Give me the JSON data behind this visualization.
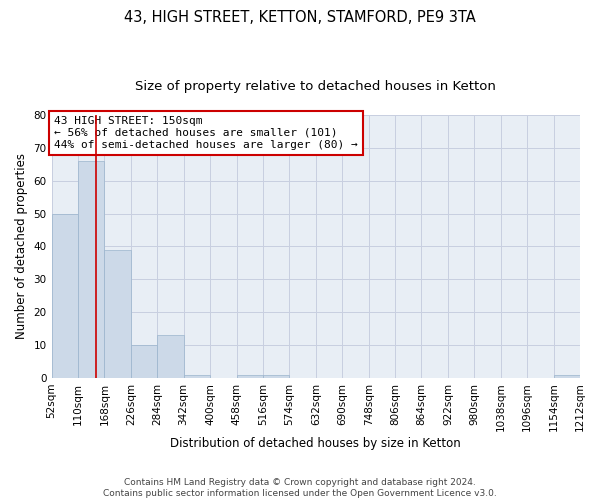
{
  "title": "43, HIGH STREET, KETTON, STAMFORD, PE9 3TA",
  "subtitle": "Size of property relative to detached houses in Ketton",
  "xlabel": "Distribution of detached houses by size in Ketton",
  "ylabel": "Number of detached properties",
  "bin_edges": [
    52,
    110,
    168,
    226,
    284,
    342,
    400,
    458,
    516,
    574,
    632,
    690,
    748,
    806,
    864,
    922,
    980,
    1038,
    1096,
    1154,
    1212
  ],
  "bar_heights": [
    50,
    66,
    39,
    10,
    13,
    1,
    0,
    1,
    1,
    0,
    0,
    0,
    0,
    0,
    0,
    0,
    0,
    0,
    0,
    1
  ],
  "bar_color": "#ccd9e8",
  "bar_edgecolor": "#9ab4cc",
  "grid_color": "#c8cfe0",
  "background_color": "#e8eef5",
  "property_line_x": 150,
  "property_line_color": "#cc0000",
  "annotation_line1": "43 HIGH STREET: 150sqm",
  "annotation_line2": "← 56% of detached houses are smaller (101)",
  "annotation_line3": "44% of semi-detached houses are larger (80) →",
  "annotation_box_color": "#cc0000",
  "ylim": [
    0,
    80
  ],
  "yticks": [
    0,
    10,
    20,
    30,
    40,
    50,
    60,
    70,
    80
  ],
  "footer_line1": "Contains HM Land Registry data © Crown copyright and database right 2024.",
  "footer_line2": "Contains public sector information licensed under the Open Government Licence v3.0.",
  "title_fontsize": 10.5,
  "subtitle_fontsize": 9.5,
  "axis_label_fontsize": 8.5,
  "tick_fontsize": 7.5,
  "annotation_fontsize": 8,
  "footer_fontsize": 6.5
}
